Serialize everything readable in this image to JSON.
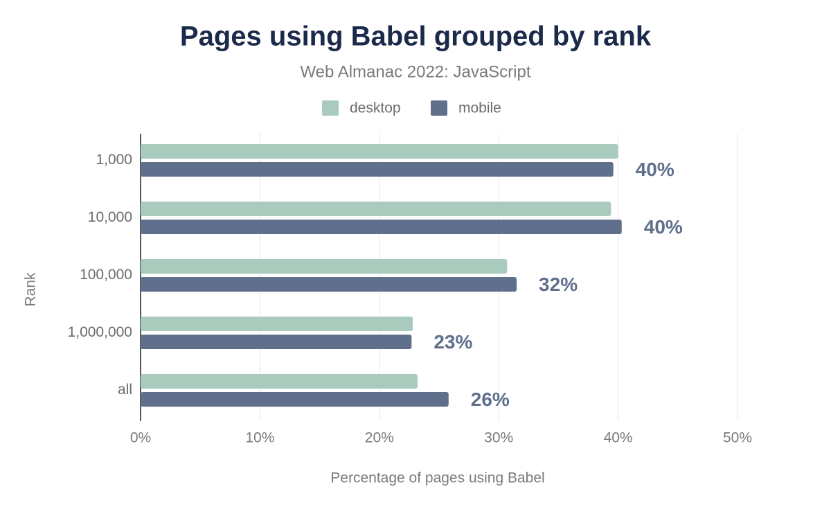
{
  "chart_data": {
    "type": "bar",
    "orientation": "horizontal",
    "title": "Pages using Babel grouped by rank",
    "subtitle": "Web Almanac 2022: JavaScript",
    "x_label": "Percentage of pages using Babel",
    "y_label": "Rank",
    "categories": [
      "1,000",
      "10,000",
      "100,000",
      "1,000,000",
      "all"
    ],
    "series": [
      {
        "name": "desktop",
        "color": "#a8cbbd",
        "values": [
          40.0,
          39.4,
          30.7,
          22.8,
          23.2
        ]
      },
      {
        "name": "mobile",
        "color": "#5f6f8c",
        "values": [
          39.6,
          40.3,
          31.5,
          22.7,
          25.8
        ],
        "value_labels": [
          "40%",
          "40%",
          "32%",
          "23%",
          "26%"
        ]
      }
    ],
    "xlim": [
      0,
      50
    ],
    "xticks": [
      {
        "value": 0,
        "label": "0%"
      },
      {
        "value": 10,
        "label": "10%"
      },
      {
        "value": 20,
        "label": "20%"
      },
      {
        "value": 30,
        "label": "30%"
      },
      {
        "value": 40,
        "label": "40%"
      },
      {
        "value": 50,
        "label": "50%"
      }
    ],
    "grid": true,
    "legend": "top"
  }
}
